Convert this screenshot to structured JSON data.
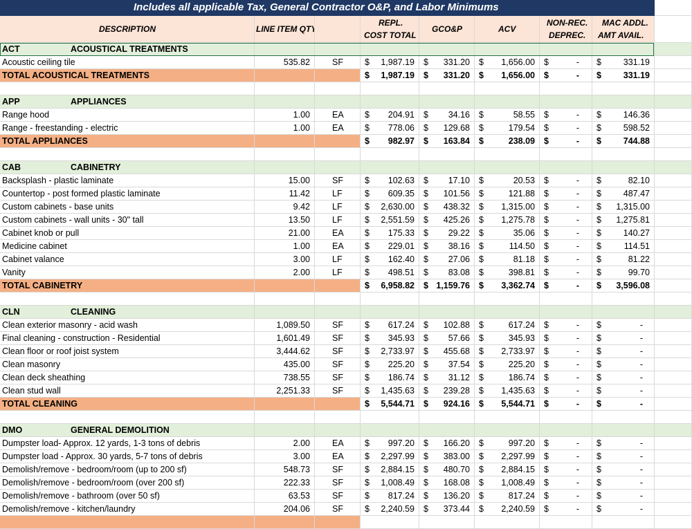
{
  "sheet": {
    "banner": "Includes all applicable Tax, General Contractor O&P, and Labor Minimums",
    "headers": {
      "description": "DESCRIPTION",
      "qty": "LINE ITEM QTY",
      "repl1": "REPL.",
      "repl2": "COST TOTAL",
      "gcop": "GCO&P",
      "acv": "ACV",
      "nonrec1": "NON-REC.",
      "nonrec2": "DEPREC.",
      "mac1": "MAC ADDL.",
      "mac2": "AMT AVAIL."
    },
    "colors": {
      "banner": "#1f3864",
      "section": "#e2efda",
      "total": "#f4b084",
      "grid": "#d9d9d9"
    },
    "rows": [
      {
        "type": "section",
        "code": "ACT",
        "name": "ACOUSTICAL TREATMENTS"
      },
      {
        "type": "item",
        "desc": "Acoustic ceiling tile",
        "qty": "535.82",
        "unit": "SF",
        "repl": "1,987.19",
        "gcop": "331.20",
        "acv": "1,656.00",
        "nonrec": "-",
        "mac": "331.19"
      },
      {
        "type": "total",
        "desc": "TOTAL ACOUSTICAL TREATMENTS",
        "repl": "1,987.19",
        "gcop": "331.20",
        "acv": "1,656.00",
        "nonrec": "-",
        "mac": "331.19"
      },
      {
        "type": "blank"
      },
      {
        "type": "section",
        "code": "APP",
        "name": "APPLIANCES"
      },
      {
        "type": "item",
        "desc": "Range hood",
        "qty": "1.00",
        "unit": "EA",
        "repl": "204.91",
        "gcop": "34.16",
        "acv": "58.55",
        "nonrec": "-",
        "mac": "146.36"
      },
      {
        "type": "item",
        "desc": "Range - freestanding - electric",
        "qty": "1.00",
        "unit": "EA",
        "repl": "778.06",
        "gcop": "129.68",
        "acv": "179.54",
        "nonrec": "-",
        "mac": "598.52"
      },
      {
        "type": "total",
        "desc": "TOTAL APPLIANCES",
        "repl": "982.97",
        "gcop": "163.84",
        "acv": "238.09",
        "nonrec": "-",
        "mac": "744.88"
      },
      {
        "type": "blank"
      },
      {
        "type": "section",
        "code": "CAB",
        "name": "CABINETRY"
      },
      {
        "type": "item",
        "desc": "Backsplash - plastic laminate",
        "qty": "15.00",
        "unit": "SF",
        "repl": "102.63",
        "gcop": "17.10",
        "acv": "20.53",
        "nonrec": "-",
        "mac": "82.10"
      },
      {
        "type": "item",
        "desc": "Countertop - post formed plastic laminate",
        "qty": "11.42",
        "unit": "LF",
        "repl": "609.35",
        "gcop": "101.56",
        "acv": "121.88",
        "nonrec": "-",
        "mac": "487.47"
      },
      {
        "type": "item",
        "desc": "Custom cabinets - base units",
        "qty": "9.42",
        "unit": "LF",
        "repl": "2,630.00",
        "gcop": "438.32",
        "acv": "1,315.00",
        "nonrec": "-",
        "mac": "1,315.00"
      },
      {
        "type": "item",
        "desc": "Custom cabinets - wall units - 30\" tall",
        "qty": "13.50",
        "unit": "LF",
        "repl": "2,551.59",
        "gcop": "425.26",
        "acv": "1,275.78",
        "nonrec": "-",
        "mac": "1,275.81"
      },
      {
        "type": "item",
        "desc": "Cabinet knob or pull",
        "qty": "21.00",
        "unit": "EA",
        "repl": "175.33",
        "gcop": "29.22",
        "acv": "35.06",
        "nonrec": "-",
        "mac": "140.27"
      },
      {
        "type": "item",
        "desc": "Medicine cabinet",
        "qty": "1.00",
        "unit": "EA",
        "repl": "229.01",
        "gcop": "38.16",
        "acv": "114.50",
        "nonrec": "-",
        "mac": "114.51"
      },
      {
        "type": "item",
        "desc": "Cabinet valance",
        "qty": "3.00",
        "unit": "LF",
        "repl": "162.40",
        "gcop": "27.06",
        "acv": "81.18",
        "nonrec": "-",
        "mac": "81.22"
      },
      {
        "type": "item",
        "desc": "Vanity",
        "qty": "2.00",
        "unit": "LF",
        "repl": "498.51",
        "gcop": "83.08",
        "acv": "398.81",
        "nonrec": "-",
        "mac": "99.70"
      },
      {
        "type": "total",
        "desc": "TOTAL CABINETRY",
        "repl": "6,958.82",
        "gcop": "1,159.76",
        "acv": "3,362.74",
        "nonrec": "-",
        "mac": "3,596.08"
      },
      {
        "type": "blank"
      },
      {
        "type": "section",
        "code": "CLN",
        "name": "CLEANING"
      },
      {
        "type": "item",
        "desc": "Clean exterior masonry - acid wash",
        "qty": "1,089.50",
        "unit": "SF",
        "repl": "617.24",
        "gcop": "102.88",
        "acv": "617.24",
        "nonrec": "-",
        "mac": "-"
      },
      {
        "type": "item",
        "desc": "Final cleaning - construction - Residential",
        "qty": "1,601.49",
        "unit": "SF",
        "repl": "345.93",
        "gcop": "57.66",
        "acv": "345.93",
        "nonrec": "-",
        "mac": "-"
      },
      {
        "type": "item",
        "desc": "Clean floor or roof joist system",
        "qty": "3,444.62",
        "unit": "SF",
        "repl": "2,733.97",
        "gcop": "455.68",
        "acv": "2,733.97",
        "nonrec": "-",
        "mac": "-"
      },
      {
        "type": "item",
        "desc": "Clean masonry",
        "qty": "435.00",
        "unit": "SF",
        "repl": "225.20",
        "gcop": "37.54",
        "acv": "225.20",
        "nonrec": "-",
        "mac": "-"
      },
      {
        "type": "item",
        "desc": "Clean deck sheathing",
        "qty": "738.55",
        "unit": "SF",
        "repl": "186.74",
        "gcop": "31.12",
        "acv": "186.74",
        "nonrec": "-",
        "mac": "-"
      },
      {
        "type": "item",
        "desc": "Clean stud wall",
        "qty": "2,251.33",
        "unit": "SF",
        "repl": "1,435.63",
        "gcop": "239.28",
        "acv": "1,435.63",
        "nonrec": "-",
        "mac": "-"
      },
      {
        "type": "total",
        "desc": "TOTAL CLEANING",
        "repl": "5,544.71",
        "gcop": "924.16",
        "acv": "5,544.71",
        "nonrec": "-",
        "mac": "-"
      },
      {
        "type": "blank"
      },
      {
        "type": "section",
        "code": "DMO",
        "name": "GENERAL DEMOLITION"
      },
      {
        "type": "item",
        "desc": "Dumpster load- Approx. 12 yards, 1-3 tons of debris",
        "qty": "2.00",
        "unit": "EA",
        "repl": "997.20",
        "gcop": "166.20",
        "acv": "997.20",
        "nonrec": "-",
        "mac": "-"
      },
      {
        "type": "item",
        "desc": "Dumpster load - Approx. 30 yards, 5-7 tons of debris",
        "qty": "3.00",
        "unit": "EA",
        "repl": "2,297.99",
        "gcop": "383.00",
        "acv": "2,297.99",
        "nonrec": "-",
        "mac": "-"
      },
      {
        "type": "item",
        "desc": "Demolish/remove - bedroom/room (up to 200 sf)",
        "qty": "548.73",
        "unit": "SF",
        "repl": "2,884.15",
        "gcop": "480.70",
        "acv": "2,884.15",
        "nonrec": "-",
        "mac": "-"
      },
      {
        "type": "item",
        "desc": "Demolish/remove - bedroom/room (over 200 sf)",
        "qty": "222.33",
        "unit": "SF",
        "repl": "1,008.49",
        "gcop": "168.08",
        "acv": "1,008.49",
        "nonrec": "-",
        "mac": "-"
      },
      {
        "type": "item",
        "desc": "Demolish/remove - bathroom (over 50 sf)",
        "qty": "63.53",
        "unit": "SF",
        "repl": "817.24",
        "gcop": "136.20",
        "acv": "817.24",
        "nonrec": "-",
        "mac": "-"
      },
      {
        "type": "item",
        "desc": "Demolish/remove - kitchen/laundry",
        "qty": "204.06",
        "unit": "SF",
        "repl": "2,240.59",
        "gcop": "373.44",
        "acv": "2,240.59",
        "nonrec": "-",
        "mac": "-"
      },
      {
        "type": "total",
        "desc": "",
        "repl": "",
        "gcop": "",
        "acv": "",
        "nonrec": "",
        "mac": ""
      }
    ]
  }
}
